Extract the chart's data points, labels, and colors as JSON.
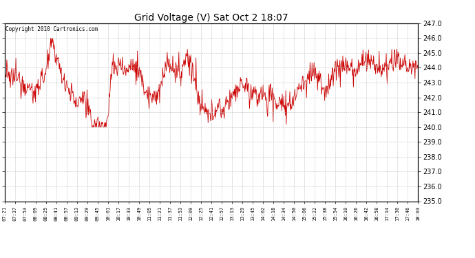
{
  "title": "Grid Voltage (V) Sat Oct 2 18:07",
  "copyright": "Copyright 2010 Cartronics.com",
  "line_color": "#cc0000",
  "background_color": "#ffffff",
  "plot_background": "#ffffff",
  "grid_color": "#b0b0b0",
  "ylim": [
    235.0,
    247.0
  ],
  "yticks": [
    235.0,
    236.0,
    237.0,
    238.0,
    239.0,
    240.0,
    241.0,
    242.0,
    243.0,
    244.0,
    245.0,
    246.0,
    247.0
  ],
  "xtick_labels": [
    "07:21",
    "07:37",
    "07:53",
    "08:09",
    "08:25",
    "08:41",
    "08:57",
    "09:13",
    "09:29",
    "09:45",
    "10:01",
    "10:17",
    "10:33",
    "10:49",
    "11:05",
    "11:21",
    "11:37",
    "11:53",
    "12:09",
    "12:25",
    "12:41",
    "12:57",
    "13:13",
    "13:29",
    "13:45",
    "14:02",
    "14:18",
    "14:34",
    "14:50",
    "15:06",
    "15:22",
    "15:38",
    "15:54",
    "16:10",
    "16:26",
    "16:42",
    "16:58",
    "17:14",
    "17:30",
    "17:46",
    "18:03"
  ],
  "n_points": 820,
  "trend_keypoints": [
    [
      0.0,
      243.5
    ],
    [
      0.04,
      243.2
    ],
    [
      0.07,
      242.3
    ],
    [
      0.1,
      243.8
    ],
    [
      0.115,
      245.7
    ],
    [
      0.13,
      244.2
    ],
    [
      0.155,
      242.5
    ],
    [
      0.165,
      242.1
    ],
    [
      0.175,
      241.5
    ],
    [
      0.19,
      242.3
    ],
    [
      0.21,
      240.3
    ],
    [
      0.225,
      240.2
    ],
    [
      0.245,
      239.9
    ],
    [
      0.26,
      244.0
    ],
    [
      0.28,
      244.5
    ],
    [
      0.295,
      243.8
    ],
    [
      0.31,
      244.3
    ],
    [
      0.325,
      244.0
    ],
    [
      0.34,
      242.5
    ],
    [
      0.355,
      242.0
    ],
    [
      0.365,
      241.8
    ],
    [
      0.38,
      242.8
    ],
    [
      0.395,
      244.5
    ],
    [
      0.41,
      244.0
    ],
    [
      0.425,
      243.5
    ],
    [
      0.44,
      244.8
    ],
    [
      0.455,
      243.8
    ],
    [
      0.47,
      241.6
    ],
    [
      0.485,
      241.0
    ],
    [
      0.5,
      240.8
    ],
    [
      0.515,
      241.5
    ],
    [
      0.525,
      241.0
    ],
    [
      0.535,
      241.2
    ],
    [
      0.545,
      242.0
    ],
    [
      0.56,
      242.5
    ],
    [
      0.575,
      242.8
    ],
    [
      0.59,
      242.5
    ],
    [
      0.61,
      242.0
    ],
    [
      0.625,
      242.3
    ],
    [
      0.635,
      241.7
    ],
    [
      0.645,
      242.5
    ],
    [
      0.655,
      241.5
    ],
    [
      0.665,
      241.8
    ],
    [
      0.675,
      241.5
    ],
    [
      0.685,
      241.2
    ],
    [
      0.695,
      241.8
    ],
    [
      0.71,
      242.5
    ],
    [
      0.73,
      243.2
    ],
    [
      0.745,
      243.8
    ],
    [
      0.76,
      243.5
    ],
    [
      0.775,
      242.0
    ],
    [
      0.79,
      243.5
    ],
    [
      0.805,
      244.0
    ],
    [
      0.82,
      244.3
    ],
    [
      0.835,
      244.0
    ],
    [
      0.85,
      243.8
    ],
    [
      0.865,
      244.2
    ],
    [
      0.88,
      244.5
    ],
    [
      0.9,
      244.0
    ],
    [
      0.915,
      243.8
    ],
    [
      0.93,
      244.2
    ],
    [
      0.945,
      244.5
    ],
    [
      0.96,
      244.3
    ],
    [
      0.975,
      244.0
    ],
    [
      1.0,
      244.0
    ]
  ],
  "noise_std": 0.35,
  "line_width": 0.6
}
